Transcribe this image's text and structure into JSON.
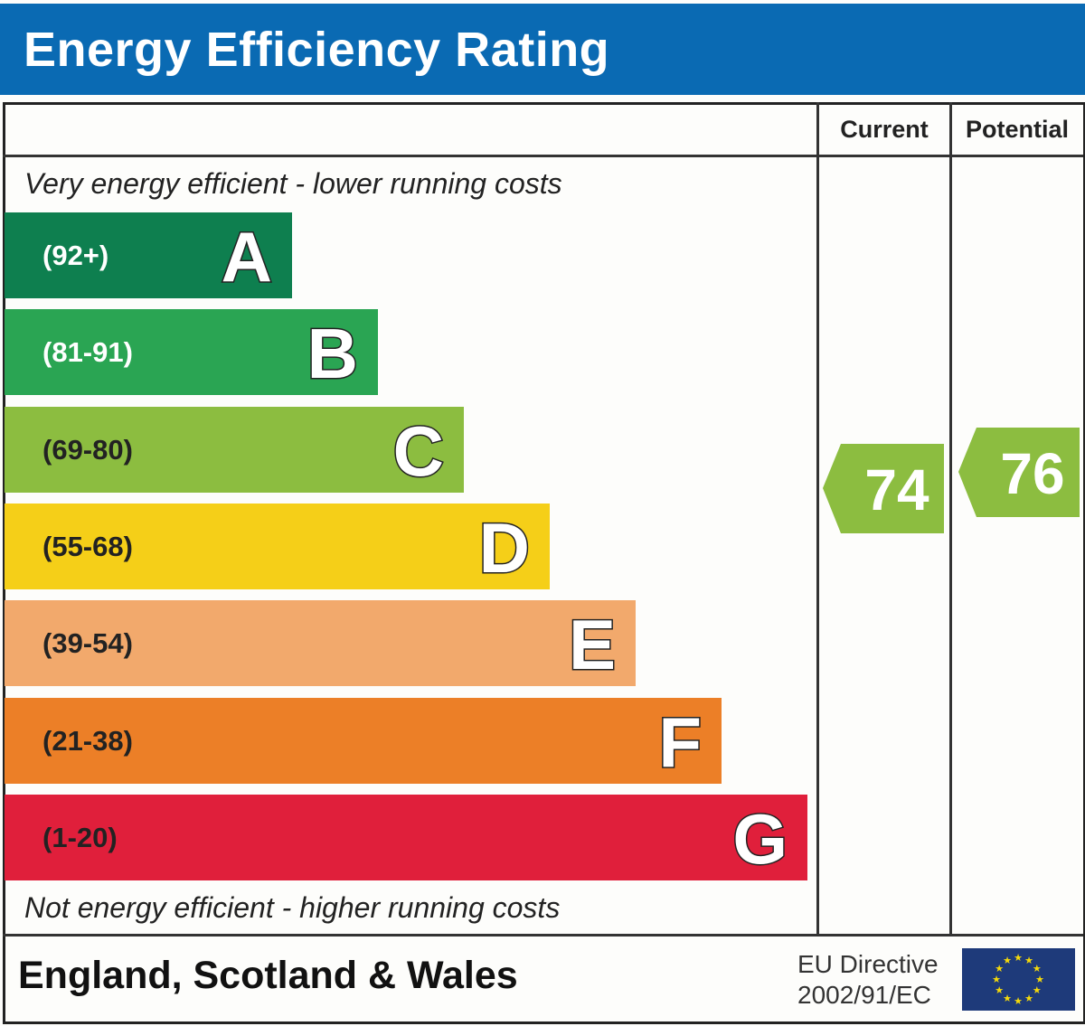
{
  "header": {
    "title": "Energy Efficiency Rating"
  },
  "columns": {
    "current": "Current",
    "potential": "Potential"
  },
  "notes": {
    "top": "Very energy efficient - lower running costs",
    "bottom": "Not energy efficient - higher running costs"
  },
  "footer": {
    "region": "England, Scotland & Wales",
    "directive_line1": "EU Directive",
    "directive_line2": "2002/91/EC"
  },
  "chart_data": {
    "type": "bar",
    "title": "Energy Efficiency Rating",
    "categories": [
      "A",
      "B",
      "C",
      "D",
      "E",
      "F",
      "G"
    ],
    "bands": [
      {
        "letter": "A",
        "range": "(92+)",
        "color": "#0e7f4f",
        "text_color": "#ffffff"
      },
      {
        "letter": "B",
        "range": "(81-91)",
        "color": "#2aa553",
        "text_color": "#ffffff"
      },
      {
        "letter": "C",
        "range": "(69-80)",
        "color": "#8cbd40",
        "text_color": "#222222"
      },
      {
        "letter": "D",
        "range": "(55-68)",
        "color": "#f5cf18",
        "text_color": "#222222"
      },
      {
        "letter": "E",
        "range": "(39-54)",
        "color": "#f2a96c",
        "text_color": "#222222"
      },
      {
        "letter": "F",
        "range": "(21-38)",
        "color": "#ec7f27",
        "text_color": "#222222"
      },
      {
        "letter": "G",
        "range": "(1-20)",
        "color": "#e01f3b",
        "text_color": "#222222"
      }
    ],
    "current": {
      "value": 74,
      "band": "C",
      "color": "#8cbd40"
    },
    "potential": {
      "value": 76,
      "band": "C",
      "color": "#8cbd40"
    }
  }
}
